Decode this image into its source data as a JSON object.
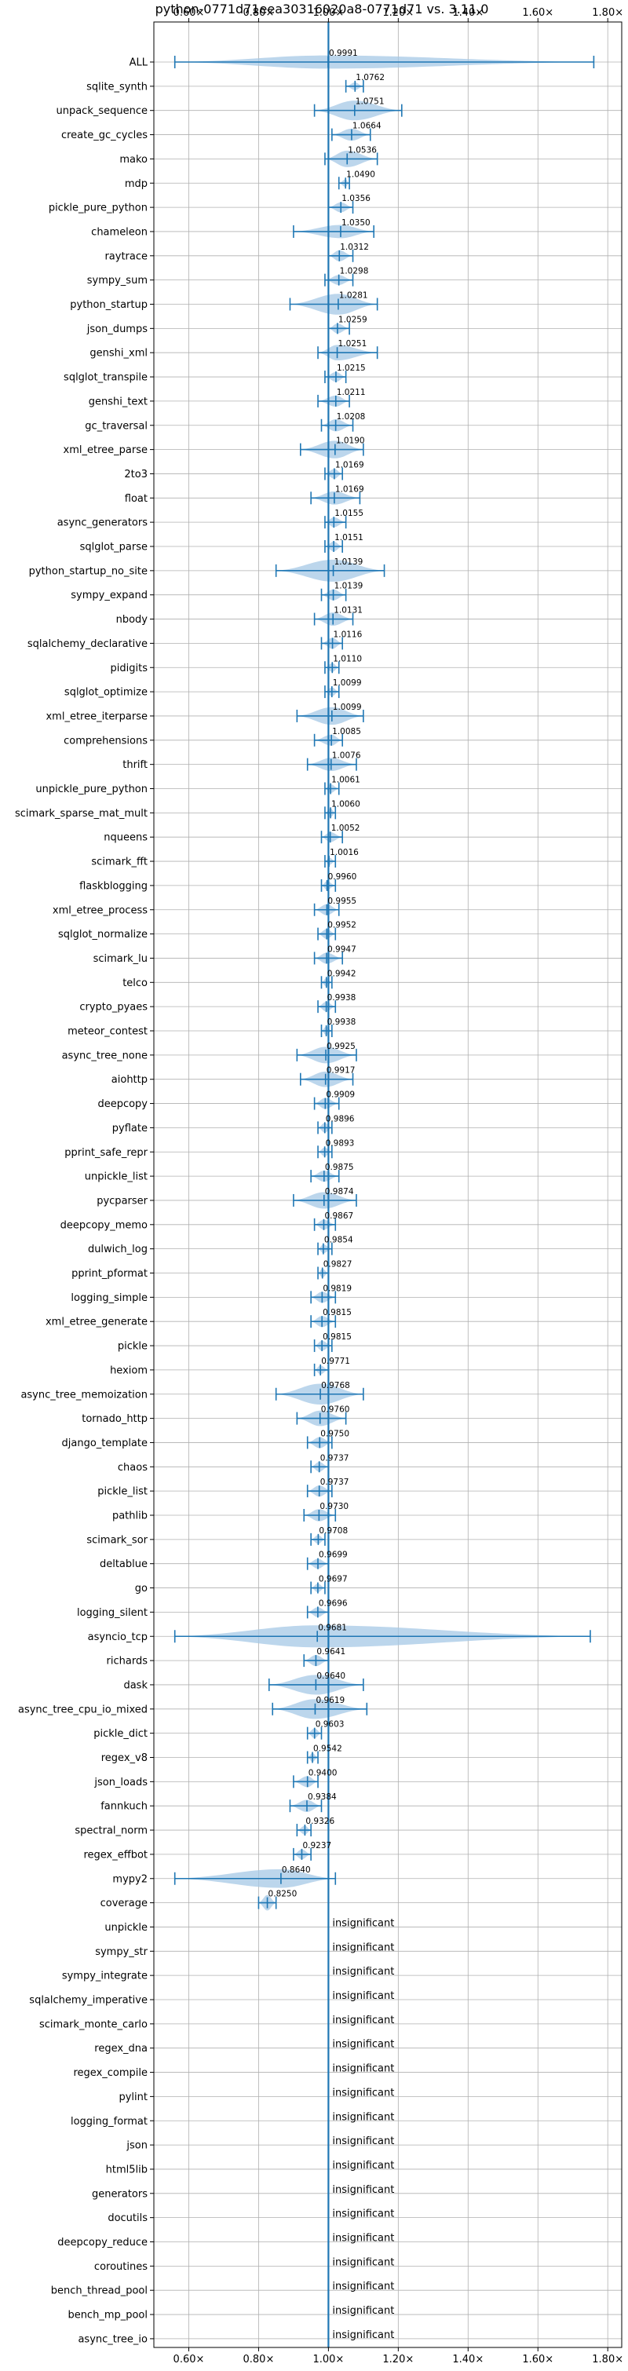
{
  "chart_data": {
    "type": "violin",
    "title": "python-0771d71eea30316020a8-0771d71 vs. 3.11.0",
    "xlabel": "",
    "ylabel": "",
    "xlim": [
      0.5,
      1.84
    ],
    "xticks": [
      0.6,
      0.8,
      1.0,
      1.2,
      1.4,
      1.6,
      1.8
    ],
    "xtick_labels": [
      "0.60×",
      "0.80×",
      "1.00×",
      "1.20×",
      "1.40×",
      "1.60×",
      "1.80×"
    ],
    "reference_line": 1.0,
    "grid": true,
    "colors": {
      "violin": "#a6c8e6",
      "line": "#1f77b4"
    },
    "insignificant_text": "insignificant",
    "rows": [
      {
        "name": "ALL",
        "value": 0.9991,
        "lo": 0.56,
        "hi": 1.76,
        "width": 0.6
      },
      {
        "name": "sqlite_synth",
        "value": 1.0762,
        "lo": 1.05,
        "hi": 1.1,
        "width": 0.35
      },
      {
        "name": "unpack_sequence",
        "value": 1.0751,
        "lo": 0.96,
        "hi": 1.21,
        "width": 0.9
      },
      {
        "name": "create_gc_cycles",
        "value": 1.0664,
        "lo": 1.01,
        "hi": 1.12,
        "width": 0.55
      },
      {
        "name": "mako",
        "value": 1.0536,
        "lo": 0.99,
        "hi": 1.14,
        "width": 0.75
      },
      {
        "name": "mdp",
        "value": 1.049,
        "lo": 1.03,
        "hi": 1.06,
        "width": 0.35
      },
      {
        "name": "pickle_pure_python",
        "value": 1.0356,
        "lo": 1.0,
        "hi": 1.07,
        "width": 0.45
      },
      {
        "name": "chameleon",
        "value": 1.035,
        "lo": 0.9,
        "hi": 1.13,
        "width": 0.6
      },
      {
        "name": "raytrace",
        "value": 1.0312,
        "lo": 1.0,
        "hi": 1.07,
        "width": 0.5
      },
      {
        "name": "sympy_sum",
        "value": 1.0298,
        "lo": 0.99,
        "hi": 1.07,
        "width": 0.45
      },
      {
        "name": "python_startup",
        "value": 1.0281,
        "lo": 0.89,
        "hi": 1.14,
        "width": 0.95
      },
      {
        "name": "json_dumps",
        "value": 1.0259,
        "lo": 1.0,
        "hi": 1.06,
        "width": 0.45
      },
      {
        "name": "genshi_xml",
        "value": 1.0251,
        "lo": 0.97,
        "hi": 1.14,
        "width": 0.7
      },
      {
        "name": "sqlglot_transpile",
        "value": 1.0215,
        "lo": 0.99,
        "hi": 1.05,
        "width": 0.45
      },
      {
        "name": "genshi_text",
        "value": 1.0211,
        "lo": 0.97,
        "hi": 1.06,
        "width": 0.5
      },
      {
        "name": "gc_traversal",
        "value": 1.0208,
        "lo": 0.98,
        "hi": 1.07,
        "width": 0.55
      },
      {
        "name": "xml_etree_parse",
        "value": 1.019,
        "lo": 0.92,
        "hi": 1.1,
        "width": 0.8
      },
      {
        "name": "2to3",
        "value": 1.0169,
        "lo": 0.99,
        "hi": 1.04,
        "width": 0.45
      },
      {
        "name": "float",
        "value": 1.0169,
        "lo": 0.95,
        "hi": 1.09,
        "width": 0.6
      },
      {
        "name": "async_generators",
        "value": 1.0155,
        "lo": 0.99,
        "hi": 1.05,
        "width": 0.45
      },
      {
        "name": "sqlglot_parse",
        "value": 1.0151,
        "lo": 0.99,
        "hi": 1.04,
        "width": 0.45
      },
      {
        "name": "python_startup_no_site",
        "value": 1.0139,
        "lo": 0.85,
        "hi": 1.16,
        "width": 1.0
      },
      {
        "name": "sympy_expand",
        "value": 1.0139,
        "lo": 0.98,
        "hi": 1.05,
        "width": 0.5
      },
      {
        "name": "nbody",
        "value": 1.0131,
        "lo": 0.96,
        "hi": 1.07,
        "width": 0.6
      },
      {
        "name": "sqlalchemy_declarative",
        "value": 1.0116,
        "lo": 0.98,
        "hi": 1.04,
        "width": 0.5
      },
      {
        "name": "pidigits",
        "value": 1.011,
        "lo": 0.99,
        "hi": 1.03,
        "width": 0.4
      },
      {
        "name": "sqlglot_optimize",
        "value": 1.0099,
        "lo": 0.99,
        "hi": 1.03,
        "width": 0.4
      },
      {
        "name": "xml_etree_iterparse",
        "value": 1.0099,
        "lo": 0.91,
        "hi": 1.1,
        "width": 0.8
      },
      {
        "name": "comprehensions",
        "value": 1.0085,
        "lo": 0.96,
        "hi": 1.04,
        "width": 0.5
      },
      {
        "name": "thrift",
        "value": 1.0076,
        "lo": 0.94,
        "hi": 1.08,
        "width": 0.6
      },
      {
        "name": "unpickle_pure_python",
        "value": 1.0061,
        "lo": 0.99,
        "hi": 1.03,
        "width": 0.4
      },
      {
        "name": "scimark_sparse_mat_mult",
        "value": 1.006,
        "lo": 0.99,
        "hi": 1.02,
        "width": 0.4
      },
      {
        "name": "nqueens",
        "value": 1.0052,
        "lo": 0.98,
        "hi": 1.04,
        "width": 0.45
      },
      {
        "name": "scimark_fft",
        "value": 1.0016,
        "lo": 0.99,
        "hi": 1.02,
        "width": 0.35
      },
      {
        "name": "flaskblogging",
        "value": 0.996,
        "lo": 0.98,
        "hi": 1.02,
        "width": 0.4
      },
      {
        "name": "xml_etree_process",
        "value": 0.9955,
        "lo": 0.96,
        "hi": 1.03,
        "width": 0.5
      },
      {
        "name": "sqlglot_normalize",
        "value": 0.9952,
        "lo": 0.97,
        "hi": 1.02,
        "width": 0.45
      },
      {
        "name": "scimark_lu",
        "value": 0.9947,
        "lo": 0.96,
        "hi": 1.04,
        "width": 0.5
      },
      {
        "name": "telco",
        "value": 0.9942,
        "lo": 0.98,
        "hi": 1.01,
        "width": 0.4
      },
      {
        "name": "crypto_pyaes",
        "value": 0.9938,
        "lo": 0.97,
        "hi": 1.02,
        "width": 0.45
      },
      {
        "name": "meteor_contest",
        "value": 0.9938,
        "lo": 0.98,
        "hi": 1.01,
        "width": 0.4
      },
      {
        "name": "async_tree_none",
        "value": 0.9925,
        "lo": 0.91,
        "hi": 1.08,
        "width": 0.75
      },
      {
        "name": "aiohttp",
        "value": 0.9917,
        "lo": 0.92,
        "hi": 1.07,
        "width": 0.7
      },
      {
        "name": "deepcopy",
        "value": 0.9909,
        "lo": 0.96,
        "hi": 1.03,
        "width": 0.5
      },
      {
        "name": "pyflate",
        "value": 0.9896,
        "lo": 0.97,
        "hi": 1.01,
        "width": 0.45
      },
      {
        "name": "pprint_safe_repr",
        "value": 0.9893,
        "lo": 0.97,
        "hi": 1.01,
        "width": 0.4
      },
      {
        "name": "unpickle_list",
        "value": 0.9875,
        "lo": 0.95,
        "hi": 1.03,
        "width": 0.5
      },
      {
        "name": "pycparser",
        "value": 0.9874,
        "lo": 0.9,
        "hi": 1.08,
        "width": 0.75
      },
      {
        "name": "deepcopy_memo",
        "value": 0.9867,
        "lo": 0.96,
        "hi": 1.02,
        "width": 0.45
      },
      {
        "name": "dulwich_log",
        "value": 0.9854,
        "lo": 0.97,
        "hi": 1.01,
        "width": 0.4
      },
      {
        "name": "pprint_pformat",
        "value": 0.9827,
        "lo": 0.97,
        "hi": 1.0,
        "width": 0.4
      },
      {
        "name": "logging_simple",
        "value": 0.9819,
        "lo": 0.95,
        "hi": 1.02,
        "width": 0.5
      },
      {
        "name": "xml_etree_generate",
        "value": 0.9815,
        "lo": 0.95,
        "hi": 1.02,
        "width": 0.5
      },
      {
        "name": "pickle",
        "value": 0.9815,
        "lo": 0.96,
        "hi": 1.01,
        "width": 0.45
      },
      {
        "name": "hexiom",
        "value": 0.9771,
        "lo": 0.96,
        "hi": 1.0,
        "width": 0.4
      },
      {
        "name": "async_tree_memoization",
        "value": 0.9768,
        "lo": 0.85,
        "hi": 1.1,
        "width": 0.95
      },
      {
        "name": "tornado_http",
        "value": 0.976,
        "lo": 0.91,
        "hi": 1.05,
        "width": 0.7
      },
      {
        "name": "django_template",
        "value": 0.975,
        "lo": 0.94,
        "hi": 1.01,
        "width": 0.5
      },
      {
        "name": "chaos",
        "value": 0.9737,
        "lo": 0.95,
        "hi": 1.0,
        "width": 0.45
      },
      {
        "name": "pickle_list",
        "value": 0.9737,
        "lo": 0.94,
        "hi": 1.01,
        "width": 0.5
      },
      {
        "name": "pathlib",
        "value": 0.973,
        "lo": 0.93,
        "hi": 1.02,
        "width": 0.55
      },
      {
        "name": "scimark_sor",
        "value": 0.9708,
        "lo": 0.95,
        "hi": 0.99,
        "width": 0.4
      },
      {
        "name": "deltablue",
        "value": 0.9699,
        "lo": 0.94,
        "hi": 1.0,
        "width": 0.45
      },
      {
        "name": "go",
        "value": 0.9697,
        "lo": 0.95,
        "hi": 0.99,
        "width": 0.4
      },
      {
        "name": "logging_silent",
        "value": 0.9696,
        "lo": 0.94,
        "hi": 1.0,
        "width": 0.45
      },
      {
        "name": "asyncio_tcp",
        "value": 0.9681,
        "lo": 0.56,
        "hi": 1.75,
        "width": 1.0
      },
      {
        "name": "richards",
        "value": 0.9641,
        "lo": 0.93,
        "hi": 1.0,
        "width": 0.5
      },
      {
        "name": "dask",
        "value": 0.964,
        "lo": 0.83,
        "hi": 1.1,
        "width": 0.9
      },
      {
        "name": "async_tree_cpu_io_mixed",
        "value": 0.9619,
        "lo": 0.84,
        "hi": 1.11,
        "width": 0.9
      },
      {
        "name": "pickle_dict",
        "value": 0.9603,
        "lo": 0.94,
        "hi": 0.98,
        "width": 0.45
      },
      {
        "name": "regex_v8",
        "value": 0.9542,
        "lo": 0.94,
        "hi": 0.97,
        "width": 0.4
      },
      {
        "name": "json_loads",
        "value": 0.94,
        "lo": 0.9,
        "hi": 0.97,
        "width": 0.5
      },
      {
        "name": "fannkuch",
        "value": 0.9384,
        "lo": 0.89,
        "hi": 0.98,
        "width": 0.55
      },
      {
        "name": "spectral_norm",
        "value": 0.9326,
        "lo": 0.91,
        "hi": 0.95,
        "width": 0.4
      },
      {
        "name": "regex_effbot",
        "value": 0.9237,
        "lo": 0.9,
        "hi": 0.95,
        "width": 0.45
      },
      {
        "name": "mypy2",
        "value": 0.864,
        "lo": 0.56,
        "hi": 1.02,
        "width": 0.85
      },
      {
        "name": "coverage",
        "value": 0.825,
        "lo": 0.8,
        "hi": 0.85,
        "width": 0.7
      },
      {
        "name": "unpickle",
        "value": null
      },
      {
        "name": "sympy_str",
        "value": null
      },
      {
        "name": "sympy_integrate",
        "value": null
      },
      {
        "name": "sqlalchemy_imperative",
        "value": null
      },
      {
        "name": "scimark_monte_carlo",
        "value": null
      },
      {
        "name": "regex_dna",
        "value": null
      },
      {
        "name": "regex_compile",
        "value": null
      },
      {
        "name": "pylint",
        "value": null
      },
      {
        "name": "logging_format",
        "value": null
      },
      {
        "name": "json",
        "value": null
      },
      {
        "name": "html5lib",
        "value": null
      },
      {
        "name": "generators",
        "value": null
      },
      {
        "name": "docutils",
        "value": null
      },
      {
        "name": "deepcopy_reduce",
        "value": null
      },
      {
        "name": "coroutines",
        "value": null
      },
      {
        "name": "bench_thread_pool",
        "value": null
      },
      {
        "name": "bench_mp_pool",
        "value": null
      },
      {
        "name": "async_tree_io",
        "value": null
      }
    ]
  }
}
